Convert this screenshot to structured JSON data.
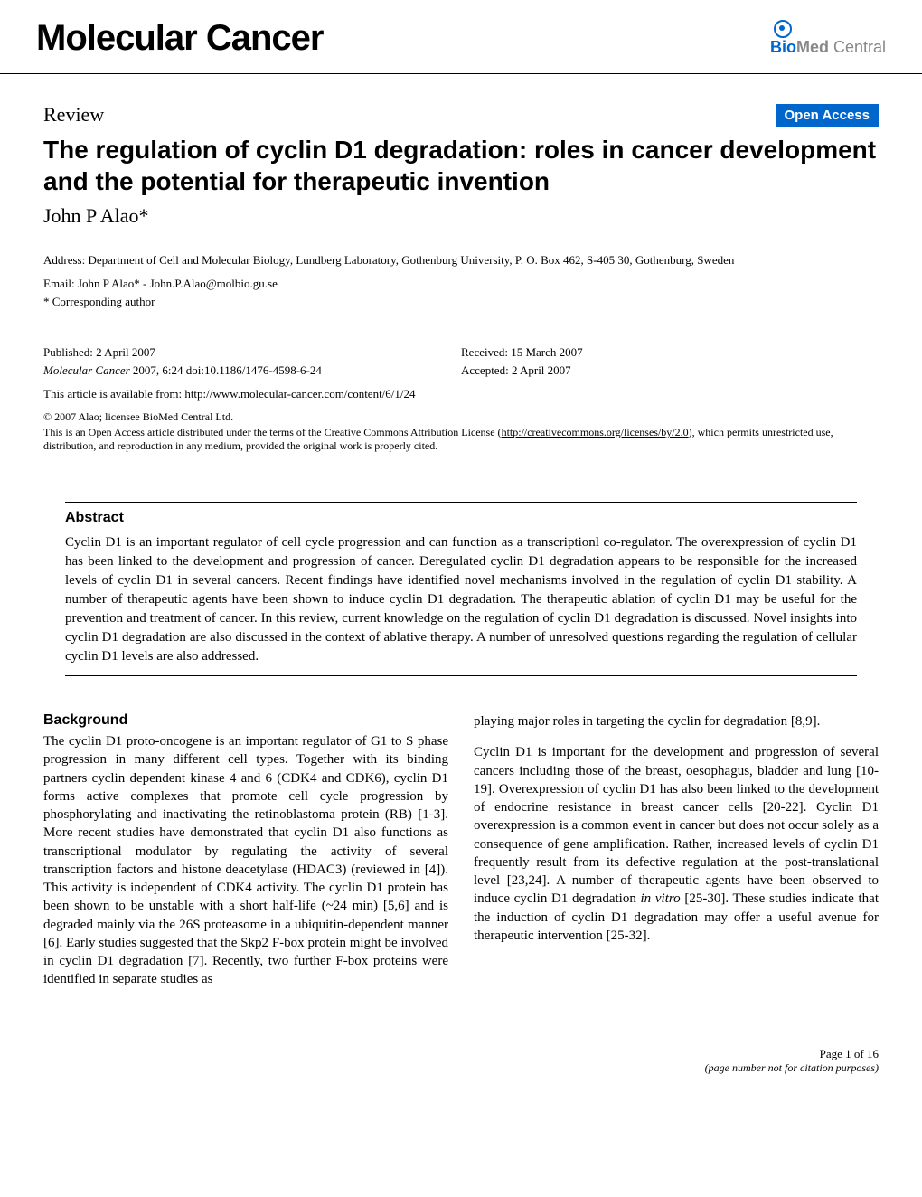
{
  "header": {
    "journal_title": "Molecular Cancer",
    "publisher_logo": {
      "bio": "Bio",
      "med": "Med",
      "central": " Central"
    }
  },
  "article": {
    "review_label": "Review",
    "open_access_label": "Open Access",
    "title": "The regulation of cyclin D1 degradation: roles in cancer development and the potential for therapeutic invention",
    "author": "John P Alao*",
    "address": "Address: Department of Cell and Molecular Biology, Lundberg Laboratory, Gothenburg University, P. O. Box 462, S-405 30, Gothenburg, Sweden",
    "email": "Email: John P Alao* - John.P.Alao@molbio.gu.se",
    "corresponding": "* Corresponding author",
    "published": "Published: 2 April 2007",
    "received": "Received: 15 March 2007",
    "accepted": "Accepted: 2 April 2007",
    "citation_journal": "Molecular Cancer",
    "citation_rest": " 2007, 6:24    doi:10.1186/1476-4598-6-24",
    "url_prefix": "This article is available from: ",
    "url": "http://www.molecular-cancer.com/content/6/1/24",
    "copyright": "© 2007 Alao; licensee BioMed Central Ltd.",
    "license_1": "This is an Open Access article distributed under the terms of the Creative Commons Attribution License (",
    "license_link": "http://creativecommons.org/licenses/by/2.0",
    "license_2": "), which permits unrestricted use, distribution, and reproduction in any medium, provided the original work is properly cited."
  },
  "abstract": {
    "heading": "Abstract",
    "text": "Cyclin D1 is an important regulator of cell cycle progression and can function as a transcriptionl co-regulator. The overexpression of cyclin D1 has been linked to the development and progression of cancer. Deregulated cyclin D1 degradation appears to be responsible for the increased levels of cyclin D1 in several cancers. Recent findings have identified novel mechanisms involved in the regulation of cyclin D1 stability. A number of therapeutic agents have been shown to induce cyclin D1 degradation. The therapeutic ablation of cyclin D1 may be useful for the prevention and treatment of cancer. In this review, current knowledge on the regulation of cyclin D1 degradation is discussed. Novel insights into cyclin D1 degradation are also discussed in the context of ablative therapy. A number of unresolved questions regarding the regulation of cellular cyclin D1 levels are also addressed."
  },
  "body": {
    "heading": "Background",
    "col1_p1": "The cyclin D1 proto-oncogene is an important regulator of G1 to S phase progression in many different cell types. Together with its binding partners cyclin dependent kinase 4 and 6 (CDK4 and CDK6), cyclin D1 forms active complexes that promote cell cycle progression by phosphorylating and inactivating the retinoblastoma protein (RB) [1-3]. More recent studies have demonstrated that cyclin D1 also functions as transcriptional modulator by regulating the activity of several transcription factors and histone deacetylase (HDAC3) (reviewed in [4]). This activity is independent of CDK4 activity. The cyclin D1 protein has been shown to be unstable with a short half-life (~24 min) [5,6] and is degraded mainly via the 26S proteasome in a ubiquitin-dependent manner [6]. Early studies suggested that the Skp2 F-box protein might be involved in cyclin D1 degradation [7]. Recently, two further F-box proteins were identified in separate studies as",
    "col2_p1": "playing major roles in targeting the cyclin for degradation [8,9].",
    "col2_p2a": "Cyclin D1 is important for the development and progression of several cancers including those of the breast, oesophagus, bladder and lung [10-19]. Overexpression of cyclin D1 has also been linked to the development of endocrine resistance in breast cancer cells [20-22]. Cyclin D1 overexpression is a common event in cancer but does not occur solely as a consequence of gene amplification. Rather, increased levels of cyclin D1 frequently result from its defective regulation at the post-translational level [23,24]. A number of therapeutic agents have been observed to induce cyclin D1 degradation ",
    "col2_p2_italic": "in vitro",
    "col2_p2b": " [25-30]. These studies indicate that the induction of cyclin D1 degradation may offer a useful avenue for therapeutic intervention [25-32]."
  },
  "footer": {
    "page": "Page 1 of 16",
    "note": "(page number not for citation purposes)"
  },
  "colors": {
    "accent": "#0066cc",
    "text": "#000000",
    "grey": "#888888",
    "background": "#ffffff"
  }
}
